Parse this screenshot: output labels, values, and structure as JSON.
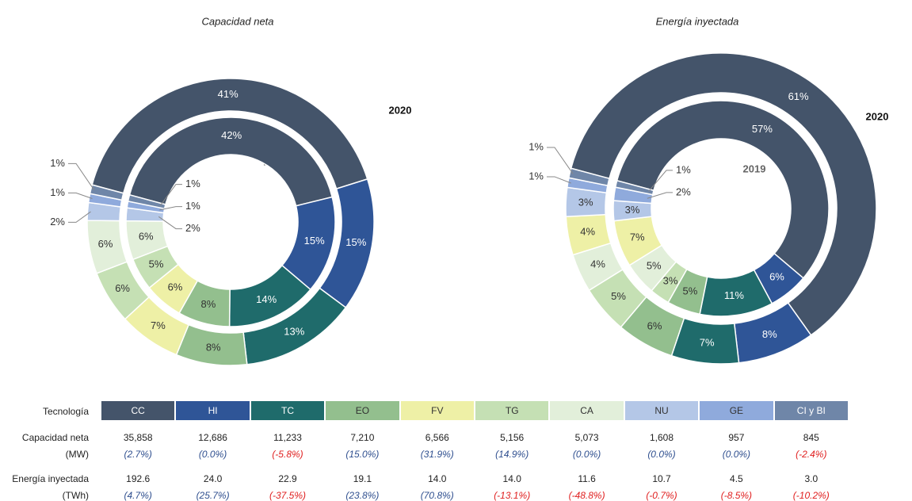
{
  "chart_data": [
    {
      "type": "pie",
      "title": "Capacidad neta",
      "categories": [
        "CC",
        "HI",
        "TC",
        "EO",
        "FV",
        "TG",
        "CA",
        "NU",
        "GE",
        "CI y BI"
      ],
      "colors": [
        "#44546a",
        "#2f5597",
        "#1f6b6b",
        "#93bf8e",
        "#eef0a6",
        "#c5e0b4",
        "#e2efda",
        "#b4c7e7",
        "#8faadc",
        "#6f86a8"
      ],
      "series": [
        {
          "name": "2019",
          "values": [
            42,
            15,
            14,
            8,
            6,
            5,
            6,
            2,
            1,
            1
          ],
          "value_labels": [
            "42%",
            "15%",
            "14%",
            "8%",
            "6%",
            "5%",
            "6%",
            "2%",
            "1%",
            "1%"
          ]
        },
        {
          "name": "2020",
          "values": [
            41,
            15,
            13,
            8,
            7,
            6,
            6,
            2,
            1,
            1
          ],
          "value_labels": [
            "41%",
            "15%",
            "13%",
            "8%",
            "7%",
            "6%",
            "6%",
            "2%",
            "1%",
            "1%"
          ]
        }
      ]
    },
    {
      "type": "pie",
      "title": "Energía inyectada",
      "categories": [
        "CC",
        "HI",
        "TC",
        "EO",
        "TG",
        "CA",
        "FV",
        "NU",
        "GE",
        "CI y BI"
      ],
      "colors": [
        "#44546a",
        "#2f5597",
        "#1f6b6b",
        "#93bf8e",
        "#c5e0b4",
        "#e2efda",
        "#eef0a6",
        "#b4c7e7",
        "#8faadc",
        "#6f86a8"
      ],
      "series": [
        {
          "name": "2019",
          "values": [
            57,
            6,
            11,
            5,
            3,
            5,
            7,
            3,
            2,
            1
          ],
          "value_labels": [
            "57%",
            "6%",
            "11%",
            "5%",
            "3%",
            "5%",
            "7%",
            "3%",
            "2%",
            "1%"
          ]
        },
        {
          "name": "2020",
          "values": [
            61,
            8,
            7,
            6,
            5,
            4,
            4,
            3,
            1,
            1
          ],
          "value_labels": [
            "61%",
            "8%",
            "7%",
            "6%",
            "5%",
            "4%",
            "4%",
            "3%",
            "1%",
            "1%"
          ]
        }
      ]
    }
  ],
  "table": {
    "header": "Tecnología",
    "columns": [
      "CC",
      "HI",
      "TC",
      "EO",
      "FV",
      "TG",
      "CA",
      "NU",
      "GE",
      "CI y BI"
    ],
    "colors": [
      "#44546a",
      "#2f5597",
      "#1f6b6b",
      "#93bf8e",
      "#eef0a6",
      "#c5e0b4",
      "#e2efda",
      "#b4c7e7",
      "#8faadc",
      "#6f86a8"
    ],
    "rows": [
      {
        "label": "Capacidad neta",
        "unit": "(MW)",
        "values": [
          "35,858",
          "12,686",
          "11,233",
          "7,210",
          "6,566",
          "5,156",
          "5,073",
          "1,608",
          "957",
          "845"
        ],
        "changes": [
          "(2.7%)",
          "(0.0%)",
          "(-5.8%)",
          "(15.0%)",
          "(31.9%)",
          "(14.9%)",
          "(0.0%)",
          "(0.0%)",
          "(0.0%)",
          "(-2.4%)"
        ]
      },
      {
        "label": "Energía inyectada",
        "unit": "(TWh)",
        "values": [
          "192.6",
          "24.0",
          "22.9",
          "19.1",
          "14.0",
          "14.0",
          "11.6",
          "10.7",
          "4.5",
          "3.0"
        ],
        "changes": [
          "(4.7%)",
          "(25.7%)",
          "(-37.5%)",
          "(23.8%)",
          "(70.8%)",
          "(-13.1%)",
          "(-48.8%)",
          "(-0.7%)",
          "(-8.5%)",
          "(-10.2%)"
        ]
      }
    ]
  }
}
